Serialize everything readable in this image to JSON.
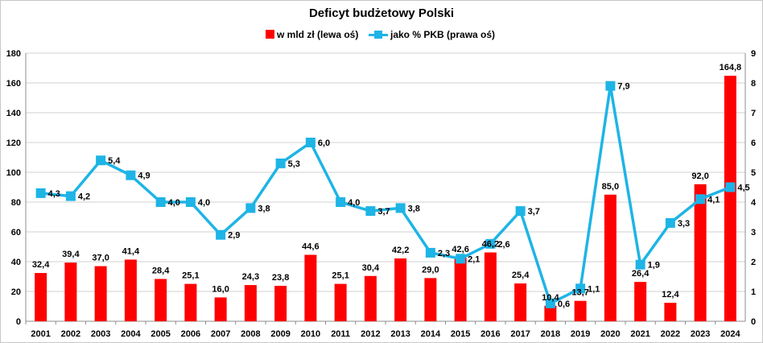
{
  "chart_data": {
    "type": "bar",
    "title": "Deficyt budżetowy Polski",
    "categories": [
      "2001",
      "2002",
      "2003",
      "2004",
      "2005",
      "2006",
      "2007",
      "2008",
      "2009",
      "2010",
      "2011",
      "2012",
      "2013",
      "2014",
      "2015",
      "2016",
      "2017",
      "2018",
      "2019",
      "2020",
      "2021",
      "2022",
      "2023",
      "2024"
    ],
    "series": [
      {
        "name": "w mld zł (lewa oś)",
        "type": "bar",
        "axis": "left",
        "color": "#ff0000",
        "values": [
          32.4,
          39.4,
          37.0,
          41.4,
          28.4,
          25.1,
          16.0,
          24.3,
          23.8,
          44.6,
          25.1,
          30.4,
          42.2,
          29.0,
          42.6,
          46.2,
          25.4,
          10.4,
          13.7,
          85.0,
          26.4,
          12.4,
          92.0,
          164.8
        ],
        "labels": [
          "32,4",
          "39,4",
          "37,0",
          "41,4",
          "28,4",
          "25,1",
          "16,0",
          "24,3",
          "23,8",
          "44,6",
          "25,1",
          "30,4",
          "42,2",
          "29,0",
          "42,6",
          "46,2",
          "25,4",
          "10,4",
          "13,7",
          "85,0",
          "26,4",
          "12,4",
          "92,0",
          "164,8"
        ]
      },
      {
        "name": "jako % PKB (prawa oś)",
        "type": "line",
        "axis": "right",
        "color": "#1eb4e6",
        "values": [
          4.3,
          4.2,
          5.4,
          4.9,
          4.0,
          4.0,
          2.9,
          3.8,
          5.3,
          6.0,
          4.0,
          3.7,
          3.8,
          2.3,
          2.1,
          2.6,
          3.7,
          0.6,
          1.1,
          7.9,
          1.9,
          3.3,
          4.1,
          4.5
        ],
        "labels": [
          "4,3",
          "4,2",
          "5,4",
          "4,9",
          "4,0",
          "4,0",
          "2,9",
          "3,8",
          "5,3",
          "6,0",
          "4,0",
          "3,7",
          "3,8",
          "2,3",
          "2,1",
          "2,6",
          "3,7",
          "0,6",
          "1,1",
          "7,9",
          "1,9",
          "3,3",
          "4,1",
          "4,5"
        ]
      }
    ],
    "y_left": {
      "ylim": [
        0,
        180
      ],
      "ticks": [
        "0",
        "20",
        "40",
        "60",
        "80",
        "100",
        "120",
        "140",
        "160",
        "180"
      ]
    },
    "y_right": {
      "ylim": [
        0,
        9
      ],
      "ticks": [
        "0",
        "1",
        "2",
        "3",
        "4",
        "5",
        "6",
        "7",
        "8",
        "9"
      ]
    },
    "grid": true,
    "legend_position": "top"
  }
}
